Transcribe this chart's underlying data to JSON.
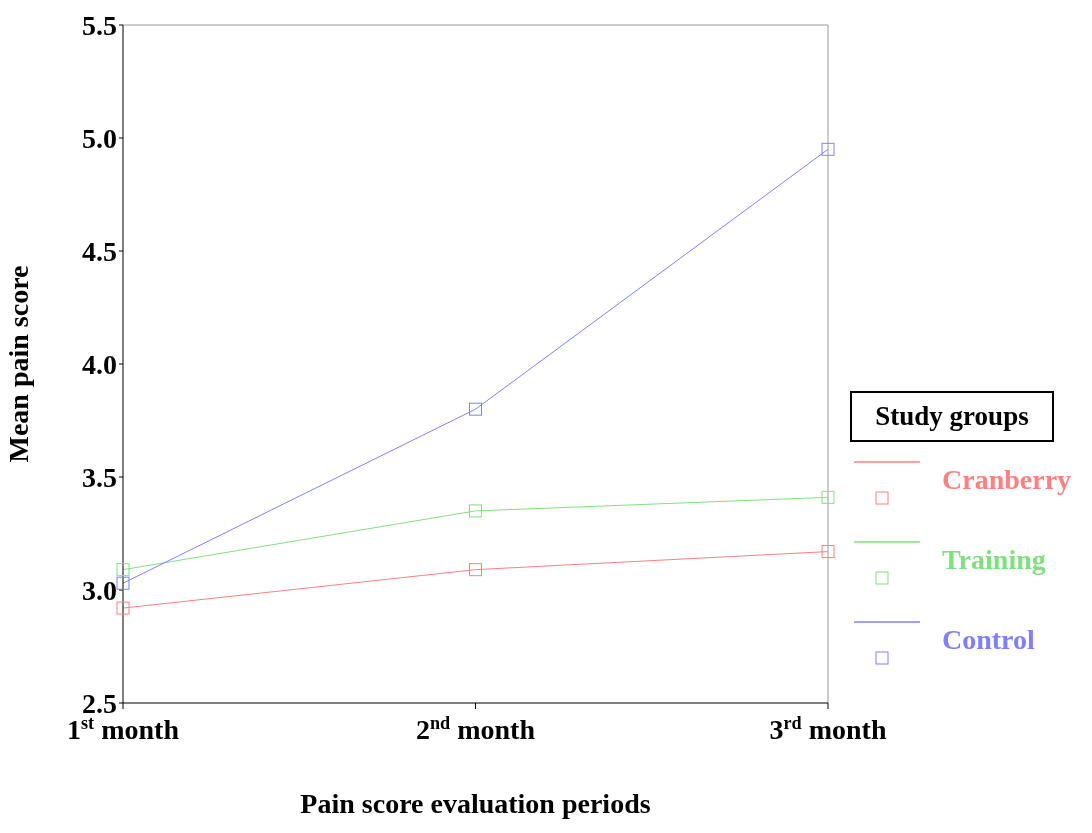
{
  "chart_data": {
    "type": "line",
    "xlabel": "Pain score evaluation periods",
    "ylabel": "Mean pain score",
    "legend_title": "Study groups",
    "categories": [
      "1$^{st}$ month",
      "2$^{nd}$ month",
      "3$^{rd}$ month"
    ],
    "series": [
      {
        "name": "Cranberry",
        "color": "#ff8080",
        "values": [
          2.92,
          3.09,
          3.17
        ]
      },
      {
        "name": "Training",
        "color": "#80e080",
        "values": [
          3.09,
          3.35,
          3.41
        ]
      },
      {
        "name": "Control",
        "color": "#8080ff",
        "values": [
          3.03,
          3.8,
          4.95
        ]
      }
    ],
    "ylim": [
      2.5,
      5.5
    ],
    "yticks": [
      2.5,
      {
        "value": 3,
        "label": "3.0"
      },
      3.5,
      {
        "value": 4,
        "label": "4.0"
      },
      4.5,
      {
        "value": 5,
        "label": "5.0"
      },
      5.5
    ],
    "legend": "right",
    "marker": "square",
    "line_style": "solid"
  }
}
